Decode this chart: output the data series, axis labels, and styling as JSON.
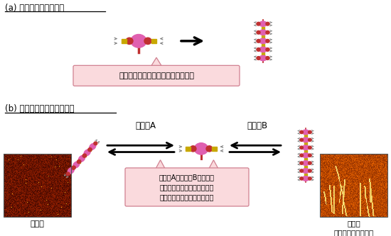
{
  "title_a": "(a) 一般的な自己組織化",
  "title_b": "(b) 今回発見した自己組織化",
  "label_a_caption": "自発的に進行するため制御できない",
  "label_b_caption": "組織化Aと組織化Bのバラン\nスによって、自己組織化のタ\nイミングや速度を制御できる",
  "label_soshiki_a": "組織化A",
  "label_soshiki_b": "組織化B",
  "label_particle": "粒子状",
  "label_string": "ひも状\n（超分子ポリマー）",
  "bg_color": "#ffffff",
  "callout_fill": "#fadadd",
  "callout_edge": "#d08090",
  "pink_mol": "#e060b0",
  "dark_red_mol": "#c03030",
  "yellow_conn": "#c8a800",
  "gray_chevron": "#888888",
  "black_arrow": "#111111"
}
